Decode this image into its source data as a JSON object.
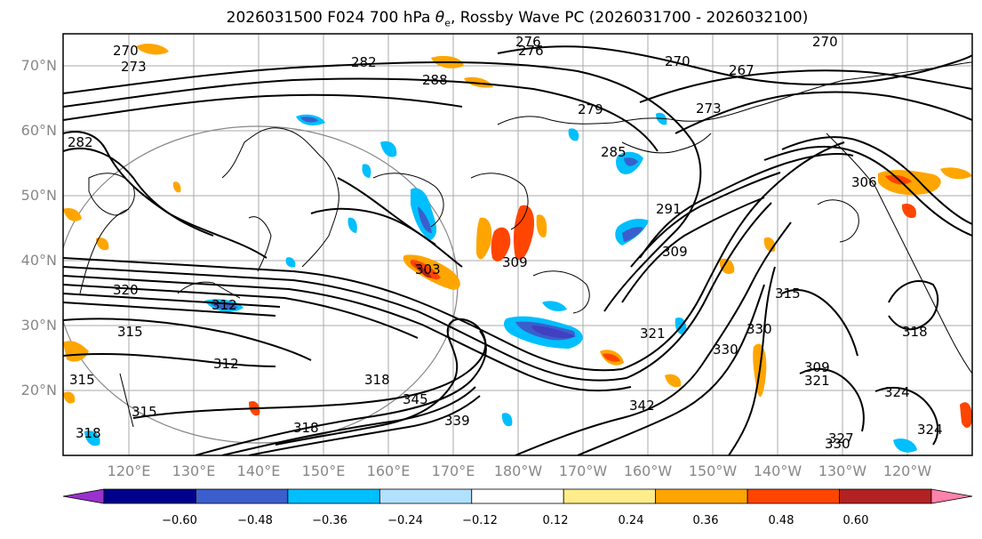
{
  "title": {
    "prefix": "2026031500 F024 700 hPa ",
    "theta": "θ",
    "sub": "e",
    "suffix": ", Rossby Wave PC (2026031700 - 2026032100)"
  },
  "lat_labels": [
    "70°N",
    "60°N",
    "50°N",
    "40°N",
    "30°N",
    "20°N"
  ],
  "lon_labels": [
    "120°E",
    "130°E",
    "140°E",
    "150°E",
    "160°E",
    "170°E",
    "180°W",
    "170°W",
    "160°W",
    "150°W",
    "140°W",
    "130°W",
    "120°W"
  ],
  "colorbar": {
    "ticks": [
      "−0.60",
      "−0.48",
      "−0.36",
      "−0.24",
      "−0.12",
      "0.12",
      "0.24",
      "0.36",
      "0.48",
      "0.60"
    ],
    "colors": [
      "#9932CC",
      "#00008B",
      "#3A5FCD",
      "#00BFFF",
      "#B0E2FF",
      "#FFFFFF",
      "#FFEC8B",
      "#FFA500",
      "#FF4500",
      "#B22222",
      "#FF82AB"
    ]
  },
  "contour_labels": [
    "270",
    "273",
    "276",
    "282",
    "288",
    "270",
    "267",
    "273",
    "279",
    "285",
    "276",
    "270",
    "282",
    "291",
    "306",
    "309",
    "303",
    "320",
    "330",
    "312",
    "315",
    "318",
    "345",
    "339",
    "318",
    "342",
    "309",
    "330",
    "321",
    "324",
    "324",
    "327",
    "330",
    "318",
    "315",
    "312",
    "315",
    "321",
    "315",
    "318",
    "309"
  ]
}
